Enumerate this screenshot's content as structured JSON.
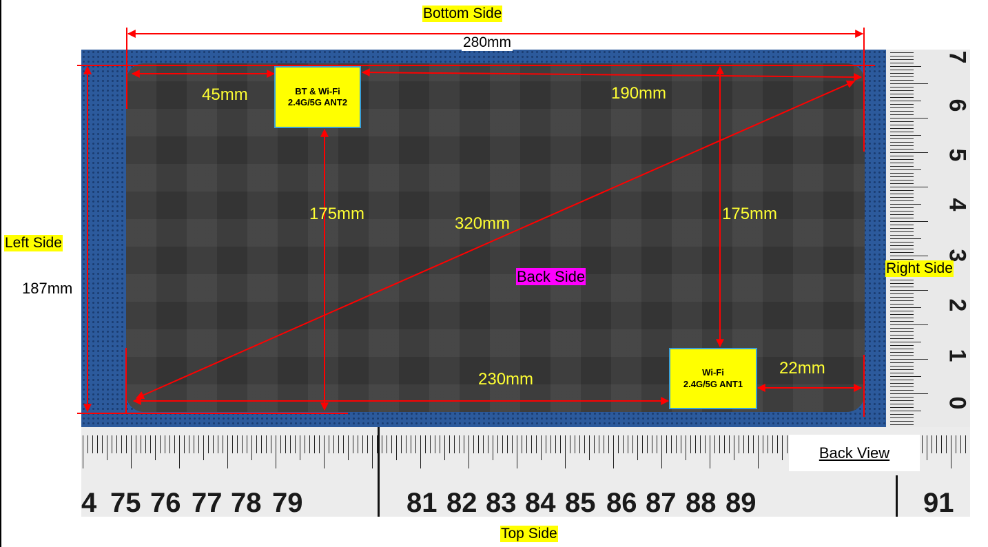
{
  "labels": {
    "bottom_side": "Bottom Side",
    "top_side": "Top Side",
    "left_side": "Left Side",
    "right_side": "Right Side",
    "back_side": "Back Side",
    "back_view": "Back View"
  },
  "dimensions": {
    "width": "280mm",
    "height": "187mm",
    "ant2_from_left": "45mm",
    "ant2_to_right": "190mm",
    "ant2_to_top": "175mm",
    "diagonal": "320mm",
    "ant1_to_bottom": "175mm",
    "ant1_from_left": "230mm",
    "ant1_to_right": "22mm"
  },
  "antennas": {
    "ant2": {
      "line1": "BT & Wi-Fi",
      "line2": "2.4G/5G ANT2"
    },
    "ant1": {
      "line1": "Wi-Fi",
      "line2": "2.4G/5G ANT1"
    }
  },
  "ruler_bottom": [
    "4",
    "75",
    "76",
    "77",
    "78",
    "79",
    "81",
    "82",
    "83",
    "84",
    "85",
    "86",
    "87",
    "88",
    "89",
    "91"
  ],
  "ruler_right": [
    "7",
    "6",
    "5",
    "4",
    "3",
    "2",
    "1",
    "0"
  ],
  "colors": {
    "dimension_line": "#ff0000",
    "label_highlight": "#ffff00",
    "back_side_highlight": "#ff00ff",
    "antenna_border": "#3aa0d8",
    "mat_blue": "#2c5a9c"
  }
}
